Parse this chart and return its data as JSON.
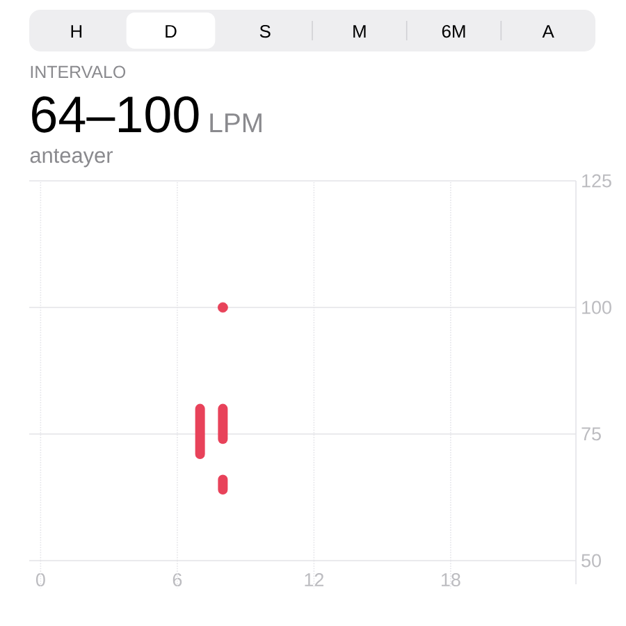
{
  "chart_data": {
    "type": "bar",
    "title": "INTERVALO",
    "subtitle": "anteayer",
    "annotations": [
      "H",
      "D",
      "S",
      "M",
      "6M",
      "A",
      "64–100",
      "LPM"
    ],
    "categories": [
      "0",
      null,
      null,
      null,
      null,
      null,
      "6",
      null,
      null,
      null,
      null,
      null,
      "12",
      null,
      null,
      null,
      null,
      null,
      "18",
      null,
      null,
      null,
      null,
      null
    ],
    "series": [
      {
        "color": "#e8425a",
        "base": [
          null,
          null,
          null,
          null,
          null,
          null,
          null,
          71,
          74,
          null,
          null,
          null,
          null,
          null,
          null,
          null,
          null,
          null,
          null,
          null,
          null,
          null,
          null,
          null
        ],
        "values": [
          null,
          null,
          null,
          null,
          null,
          null,
          null,
          9,
          6,
          null,
          null,
          null,
          null,
          null,
          null,
          null,
          null,
          null,
          null,
          null,
          null,
          null,
          null,
          null
        ]
      },
      {
        "color": "#e8425a",
        "base": [
          null,
          null,
          null,
          null,
          null,
          null,
          null,
          null,
          64,
          null,
          null,
          null,
          null,
          null,
          null,
          null,
          null,
          null,
          null,
          null,
          null,
          null,
          null,
          null
        ],
        "values": [
          null,
          null,
          null,
          null,
          null,
          null,
          null,
          null,
          2,
          null,
          null,
          null,
          null,
          null,
          null,
          null,
          null,
          null,
          null,
          null,
          null,
          null,
          null,
          null
        ]
      },
      {
        "type": "scatter",
        "color": "#e8425a",
        "marker": "circle",
        "values": [
          null,
          null,
          null,
          null,
          null,
          null,
          null,
          null,
          100,
          null,
          null,
          null,
          null,
          null,
          null,
          null,
          null,
          null,
          null,
          null,
          null,
          null,
          null,
          null
        ]
      }
    ],
    "ylim": [
      50,
      125
    ],
    "yticks": [
      50,
      75,
      100,
      125
    ],
    "grid": true
  }
}
